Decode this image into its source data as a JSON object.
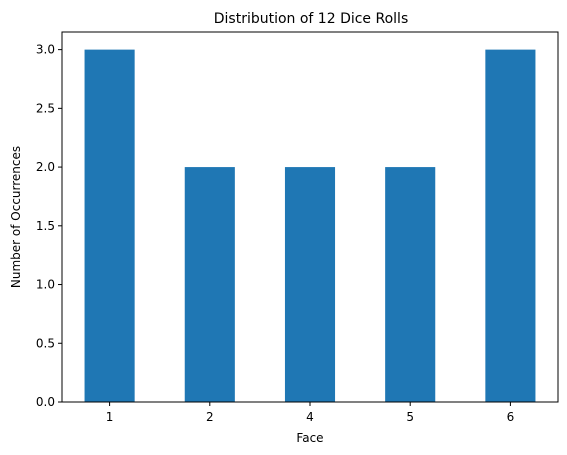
{
  "chart_data": {
    "type": "bar",
    "title": "Distribution of 12 Dice Rolls",
    "xlabel": "Face",
    "ylabel": "Number of Occurrences",
    "categories": [
      "1",
      "2",
      "4",
      "5",
      "6"
    ],
    "values": [
      3,
      2,
      2,
      2,
      3
    ],
    "ylim": [
      0,
      3.15
    ],
    "yticks": [
      "0.0",
      "0.5",
      "1.0",
      "1.5",
      "2.0",
      "2.5",
      "3.0"
    ],
    "grid": false,
    "legend": "none",
    "bar_color": "#1f77b4"
  }
}
